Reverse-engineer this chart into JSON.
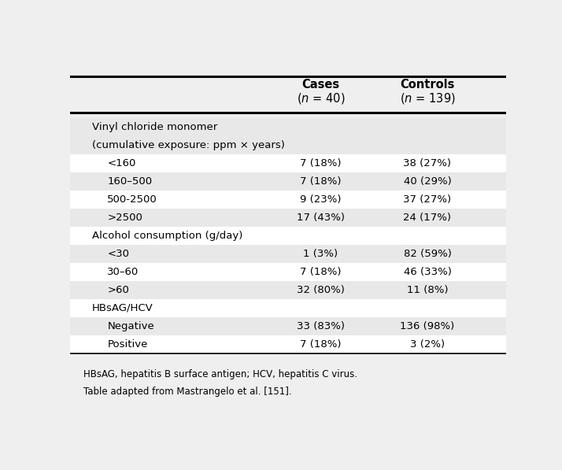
{
  "col_headers_line1": [
    "Cases",
    "Controls"
  ],
  "col_headers_line2": [
    "(n = 40)",
    "(n = 139)"
  ],
  "rows": [
    {
      "label": "Vinyl chloride monomer",
      "indent": 0,
      "cases": "",
      "controls": "",
      "bg": "#e8e8e8"
    },
    {
      "label": "(cumulative exposure: ppm × years)",
      "indent": 0,
      "cases": "",
      "controls": "",
      "bg": "#e8e8e8"
    },
    {
      "label": "<160",
      "indent": 1,
      "cases": "7 (18%)",
      "controls": "38 (27%)",
      "bg": "#ffffff"
    },
    {
      "label": "160–500",
      "indent": 1,
      "cases": "7 (18%)",
      "controls": "40 (29%)",
      "bg": "#e8e8e8"
    },
    {
      "label": "500-2500",
      "indent": 1,
      "cases": "9 (23%)",
      "controls": "37 (27%)",
      "bg": "#ffffff"
    },
    {
      "label": ">2500",
      "indent": 1,
      "cases": "17 (43%)",
      "controls": "24 (17%)",
      "bg": "#e8e8e8"
    },
    {
      "label": "Alcohol consumption (g/day)",
      "indent": 0,
      "cases": "",
      "controls": "",
      "bg": "#ffffff"
    },
    {
      "label": "<30",
      "indent": 1,
      "cases": "1 (3%)",
      "controls": "82 (59%)",
      "bg": "#e8e8e8"
    },
    {
      "label": "30–60",
      "indent": 1,
      "cases": "7 (18%)",
      "controls": "46 (33%)",
      "bg": "#ffffff"
    },
    {
      "label": ">60",
      "indent": 1,
      "cases": "32 (80%)",
      "controls": "11 (8%)",
      "bg": "#e8e8e8"
    },
    {
      "label": "HBsAG/HCV",
      "indent": 0,
      "cases": "",
      "controls": "",
      "bg": "#ffffff"
    },
    {
      "label": "Negative",
      "indent": 1,
      "cases": "33 (83%)",
      "controls": "136 (98%)",
      "bg": "#e8e8e8"
    },
    {
      "label": "Positive",
      "indent": 1,
      "cases": "7 (18%)",
      "controls": "3 (2%)",
      "bg": "#ffffff"
    }
  ],
  "footnotes": [
    "HBsAG, hepatitis B surface antigen; HCV, hepatitis C virus.",
    "Table adapted from Mastrangelo et al. [151]."
  ],
  "bg_color": "#efefef",
  "font_size": 9.5,
  "header_font_size": 10.5
}
